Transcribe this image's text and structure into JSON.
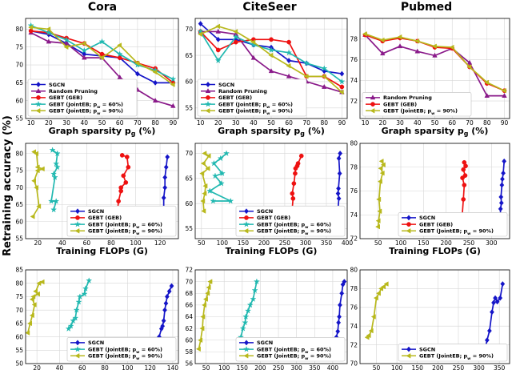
{
  "figure": {
    "column_titles": [
      "Cora",
      "CiteSeer",
      "Pubmed"
    ],
    "ylabel": "Retraining accuracy (%)"
  },
  "colors": {
    "SGCN": "#1515c8",
    "Random Pruning": "#8a1a8a",
    "GEBT (GEB)": "#ee1111",
    "GEBT (JointEB; p_w = 60%)": "#20b8b0",
    "GEBT (JointEB; p_w = 90%)": "#b8b81c"
  },
  "chart_data": [
    {
      "id": "r0c0",
      "type": "line",
      "xlabel": "Graph sparsity p_g (%)",
      "xlim": [
        7,
        93
      ],
      "ylim": [
        55,
        83
      ],
      "xticks": [
        10,
        20,
        30,
        40,
        50,
        60,
        70,
        80,
        90
      ],
      "yticks": [
        55,
        60,
        65,
        70,
        75,
        80
      ],
      "legend": "bottom-left",
      "series": [
        {
          "name": "SGCN",
          "marker": "diamond",
          "x": [
            10,
            20,
            30,
            40,
            50,
            60,
            70,
            80,
            90
          ],
          "y": [
            79.5,
            78.5,
            76,
            73,
            72.5,
            72,
            67.5,
            65,
            65
          ]
        },
        {
          "name": "Random Pruning",
          "marker": "triangle-up",
          "x": [
            10,
            20,
            30,
            40,
            50,
            60,
            70,
            80,
            90
          ],
          "y": [
            79,
            76.5,
            76,
            72,
            72,
            66.5,
            63,
            60,
            58.5
          ]
        },
        {
          "name": "GEBT (GEB)",
          "marker": "circle",
          "x": [
            10,
            20,
            30,
            40,
            50,
            60,
            70,
            80,
            90
          ],
          "y": [
            79.5,
            79,
            77.5,
            76,
            73,
            72,
            70.5,
            69,
            65
          ]
        },
        {
          "name": "GEBT (JointEB; p_w = 60%)",
          "marker": "star",
          "x": [
            10,
            20,
            30,
            40,
            50,
            60,
            70,
            80,
            90
          ],
          "y": [
            81,
            79,
            77,
            74,
            76.5,
            73,
            70,
            68.5,
            66
          ]
        },
        {
          "name": "GEBT (JointEB; p_w = 90%)",
          "marker": "triangle-left",
          "x": [
            10,
            20,
            30,
            40,
            50,
            60,
            70,
            80,
            90
          ],
          "y": [
            80.5,
            80,
            75,
            76,
            72,
            75.5,
            70.5,
            68,
            64.5
          ]
        }
      ]
    },
    {
      "id": "r0c1",
      "type": "line",
      "xlabel": "Graph sparsity p_g (%)",
      "xlim": [
        7,
        93
      ],
      "ylim": [
        53,
        72
      ],
      "xticks": [
        10,
        20,
        30,
        40,
        50,
        60,
        70,
        80,
        90
      ],
      "yticks": [
        55,
        60,
        65,
        70
      ],
      "legend": "bottom-left",
      "series": [
        {
          "name": "SGCN",
          "marker": "diamond",
          "x": [
            10,
            20,
            30,
            40,
            50,
            60,
            70,
            80,
            90
          ],
          "y": [
            71,
            68,
            68,
            67,
            66.5,
            64,
            63.5,
            62,
            61.5
          ]
        },
        {
          "name": "Random Pruning",
          "marker": "triangle-up",
          "x": [
            10,
            20,
            30,
            40,
            50,
            60,
            70,
            80,
            90
          ],
          "y": [
            69.5,
            69.5,
            69,
            64.5,
            62,
            61,
            60,
            59,
            58
          ]
        },
        {
          "name": "GEBT (GEB)",
          "marker": "circle",
          "x": [
            10,
            20,
            30,
            40,
            50,
            60,
            70,
            80,
            90
          ],
          "y": [
            69.5,
            66,
            67.5,
            68,
            68,
            67.5,
            61,
            61,
            59
          ]
        },
        {
          "name": "GEBT (JointEB; p_w = 60%)",
          "marker": "star",
          "x": [
            10,
            20,
            30,
            40,
            50,
            60,
            70,
            80,
            90
          ],
          "y": [
            69.5,
            64,
            68.5,
            67,
            66,
            65.5,
            63.5,
            62.5,
            60
          ]
        },
        {
          "name": "GEBT (JointEB; p_w = 90%)",
          "marker": "triangle-left",
          "x": [
            10,
            20,
            30,
            40,
            50,
            60,
            70,
            80,
            90
          ],
          "y": [
            69,
            70.5,
            69.5,
            67.5,
            65,
            63,
            61,
            61,
            58
          ]
        }
      ]
    },
    {
      "id": "r0c2",
      "type": "line",
      "xlabel": "Graph sparsity p_g (%)",
      "xlim": [
        7,
        93
      ],
      "ylim": [
        70.3,
        80
      ],
      "xticks": [
        10,
        20,
        30,
        40,
        50,
        60,
        70,
        80,
        90
      ],
      "yticks": [
        72,
        74,
        76,
        78
      ],
      "legend": "bottom-left",
      "series": [
        {
          "name": "Random Pruning",
          "marker": "triangle-up",
          "x": [
            10,
            20,
            30,
            40,
            50,
            60,
            70,
            80,
            90
          ],
          "y": [
            78.4,
            76.6,
            77.3,
            76.8,
            76.4,
            77.1,
            75.7,
            72.5,
            72.5
          ]
        },
        {
          "name": "GEBT (GEB)",
          "marker": "circle",
          "x": [
            10,
            20,
            30,
            40,
            50,
            60,
            70,
            80,
            90
          ],
          "y": [
            78.4,
            77.8,
            78.1,
            77.8,
            77.2,
            77.1,
            75.3,
            73.7,
            73
          ]
        },
        {
          "name": "GEBT (JointEB; p_w = 90%)",
          "marker": "triangle-left",
          "x": [
            10,
            20,
            30,
            40,
            50,
            60,
            70,
            80,
            90
          ],
          "y": [
            78.5,
            77.9,
            78.2,
            77.8,
            77.3,
            77.2,
            75.3,
            73.8,
            73
          ]
        }
      ]
    },
    {
      "id": "r1c0",
      "type": "line",
      "xlabel": "Training FLOPs (G)",
      "xlim": [
        10,
        135
      ],
      "ylim": [
        55,
        83
      ],
      "xticks": [
        20,
        40,
        60,
        80,
        100,
        120
      ],
      "yticks": [
        55,
        60,
        65,
        70,
        75,
        80
      ],
      "legend": "bottom-right",
      "series": [
        {
          "name": "SGCN",
          "marker": "diamond",
          "x": [
            126,
            125,
            124,
            124,
            123,
            123,
            122,
            122,
            121
          ],
          "y": [
            79,
            76,
            73,
            70,
            67,
            64,
            62,
            60,
            58
          ]
        },
        {
          "name": "GEBT (GEB)",
          "marker": "circle",
          "x": [
            89,
            93,
            94,
            90,
            92,
            88,
            88,
            86,
            85
          ],
          "y": [
            79.5,
            79,
            76,
            73.5,
            71.5,
            70,
            69,
            66,
            62.5
          ]
        },
        {
          "name": "GEBT (JointEB; p_w = 60%)",
          "marker": "star",
          "x": [
            32,
            36,
            35,
            36,
            33,
            34,
            31,
            35,
            33
          ],
          "y": [
            81,
            80,
            77,
            76,
            74,
            73,
            66,
            66,
            63.5
          ]
        },
        {
          "name": "GEBT (JointEB; p_w = 90%)",
          "marker": "triangle-left",
          "x": [
            17,
            19,
            20,
            24,
            20,
            17,
            19,
            21,
            16
          ],
          "y": [
            80.5,
            80,
            76,
            75.5,
            75,
            72,
            70,
            64.5,
            61.5
          ]
        }
      ]
    },
    {
      "id": "r1c1",
      "type": "line",
      "xlabel": "Training FLOPs (G)",
      "xlim": [
        35,
        400
      ],
      "ylim": [
        53,
        72
      ],
      "xticks": [
        50,
        100,
        150,
        200,
        250,
        300,
        350,
        400
      ],
      "yticks": [
        55,
        60,
        65,
        70
      ],
      "legend": "bottom-right",
      "series": [
        {
          "name": "SGCN",
          "marker": "diamond",
          "x": [
            383,
            380,
            382,
            379,
            378,
            380,
            378,
            376,
            375
          ],
          "y": [
            70,
            69,
            66,
            63,
            62,
            61,
            59,
            58,
            57
          ]
        },
        {
          "name": "GEBT (GEB)",
          "marker": "circle",
          "x": [
            290,
            282,
            280,
            276,
            275,
            272,
            268,
            270,
            268
          ],
          "y": [
            69.5,
            68,
            67.5,
            67,
            66,
            64,
            62,
            61,
            59
          ]
        },
        {
          "name": "GEBT (JointEB; p_w = 60%)",
          "marker": "star",
          "x": [
            110,
            96,
            80,
            100,
            83,
            98,
            70,
            120,
            78
          ],
          "y": [
            70,
            69,
            68,
            66,
            65.5,
            64,
            62.5,
            60.5,
            60.5
          ]
        },
        {
          "name": "GEBT (JointEB; p_w = 90%)",
          "marker": "triangle-left",
          "x": [
            58,
            68,
            55,
            66,
            52,
            60,
            58,
            54,
            56
          ],
          "y": [
            70,
            69.5,
            68,
            67,
            66,
            63.5,
            62,
            60.5,
            58.5
          ]
        }
      ]
    },
    {
      "id": "r1c2",
      "type": "line",
      "xlabel": "Training FLOPs (G)",
      "xlim": [
        10,
        340
      ],
      "ylim": [
        72,
        80
      ],
      "xticks": [
        50,
        100,
        150,
        200,
        250,
        300
      ],
      "yticks": [
        72,
        74,
        76,
        78,
        80
      ],
      "legend": "bottom-right",
      "series": [
        {
          "name": "SGCN",
          "marker": "diamond",
          "x": [
            328,
            326,
            324,
            323,
            321,
            322,
            320,
            319,
            318
          ],
          "y": [
            78.5,
            77.5,
            77,
            76.5,
            75.5,
            75,
            74.5,
            73,
            72.6
          ]
        },
        {
          "name": "GEBT (GEB)",
          "marker": "circle",
          "x": [
            240,
            243,
            238,
            242,
            236,
            240,
            238,
            235,
            237
          ],
          "y": [
            78.4,
            78.1,
            77.8,
            77.3,
            77.1,
            76.5,
            75.3,
            73.7,
            73.3
          ]
        },
        {
          "name": "GEBT (JointEB; p_w = 90%)",
          "marker": "triangle-left",
          "x": [
            58,
            62,
            56,
            60,
            55,
            52,
            54,
            51,
            50
          ],
          "y": [
            78.5,
            78.2,
            77.9,
            77.5,
            76.8,
            75.3,
            74.3,
            73.5,
            73
          ]
        }
      ]
    },
    {
      "id": "r2c0",
      "type": "line",
      "xlabel": "Inference FLOPs (M)",
      "xlim": [
        10,
        145
      ],
      "ylim": [
        50,
        85
      ],
      "xticks": [
        20,
        40,
        60,
        80,
        100,
        120,
        140
      ],
      "yticks": [
        50,
        55,
        60,
        65,
        70,
        75,
        80,
        85
      ],
      "legend": "bottom-right",
      "series": [
        {
          "name": "SGCN",
          "marker": "diamond",
          "x": [
            139,
            137,
            135,
            134,
            133,
            132,
            131,
            130,
            128,
            126
          ],
          "y": [
            79,
            77,
            75,
            72.5,
            70,
            66,
            64,
            63,
            60,
            58
          ]
        },
        {
          "name": "GEBT (JointEB; p_w = 60%)",
          "marker": "star",
          "x": [
            66,
            63,
            62,
            58,
            57,
            55,
            54,
            52,
            50,
            48
          ],
          "y": [
            81,
            78,
            76,
            75,
            73,
            70,
            67,
            66,
            64,
            63
          ]
        },
        {
          "name": "GEBT (JointEB; p_w = 90%)",
          "marker": "triangle-left",
          "x": [
            25,
            22,
            19,
            21,
            17,
            16,
            18,
            16,
            14,
            12
          ],
          "y": [
            80.5,
            80,
            77,
            76,
            75,
            74,
            72,
            68,
            65,
            61.5
          ]
        }
      ]
    },
    {
      "id": "r2c1",
      "type": "line",
      "xlabel": "Inference FLOPs (M)",
      "xlim": [
        20,
        440
      ],
      "ylim": [
        56,
        72
      ],
      "xticks": [
        50,
        100,
        150,
        200,
        250,
        300,
        350,
        400
      ],
      "yticks": [
        56,
        58,
        60,
        62,
        64,
        66,
        68,
        70,
        72
      ],
      "legend": "bottom-right",
      "series": [
        {
          "name": "SGCN",
          "marker": "diamond",
          "x": [
            432,
            428,
            425,
            420,
            418,
            416,
            414,
            410,
            408,
            400
          ],
          "y": [
            70,
            69.5,
            68,
            66,
            64,
            63,
            61.5,
            60.5,
            59.5,
            58.5
          ]
        },
        {
          "name": "GEBT (JointEB; p_w = 60%)",
          "marker": "star",
          "x": [
            190,
            185,
            180,
            172,
            166,
            160,
            158,
            152,
            146
          ],
          "y": [
            70,
            68.5,
            67,
            66,
            65,
            64,
            63,
            62,
            60.5
          ]
        },
        {
          "name": "GEBT (JointEB; p_w = 90%)",
          "marker": "triangle-left",
          "x": [
            62,
            58,
            55,
            50,
            46,
            42,
            40,
            35,
            30
          ],
          "y": [
            70,
            69,
            68,
            67,
            66,
            64,
            62,
            60,
            58.5
          ]
        }
      ]
    },
    {
      "id": "r2c2",
      "type": "line",
      "xlabel": "Inference FLOPs (M)",
      "xlim": [
        10,
        375
      ],
      "ylim": [
        70,
        80
      ],
      "xticks": [
        50,
        100,
        150,
        200,
        250,
        300,
        350
      ],
      "yticks": [
        70,
        72,
        74,
        76,
        78,
        80
      ],
      "legend": "bottom-right",
      "series": [
        {
          "name": "SGCN",
          "marker": "diamond",
          "x": [
            358,
            352,
            345,
            340,
            336,
            332,
            326,
            320,
            312
          ],
          "y": [
            78.5,
            77,
            76.6,
            77,
            76.5,
            75.5,
            73.5,
            72.5,
            71
          ]
        },
        {
          "name": "GEBT (JointEB; p_w = 90%)",
          "marker": "triangle-left",
          "x": [
            75,
            68,
            62,
            56,
            50,
            44,
            38,
            32,
            28
          ],
          "y": [
            78.5,
            78.2,
            78,
            77.5,
            77,
            75,
            73.5,
            73,
            72.8
          ]
        }
      ]
    }
  ]
}
